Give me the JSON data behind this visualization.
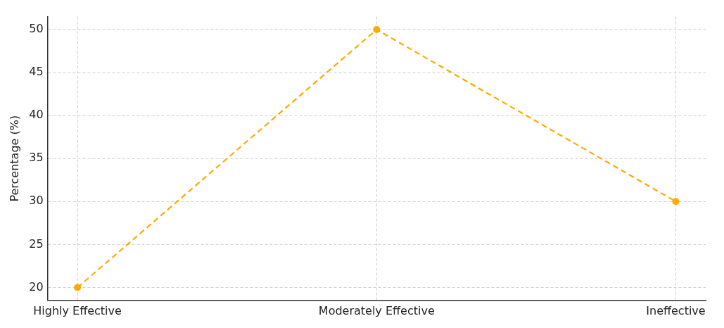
{
  "chart_data": {
    "type": "line",
    "ylabel": "Percentage (%)",
    "categories": [
      "Highly Effective",
      "Moderately Effective",
      "Ineffective"
    ],
    "series": [
      {
        "color": "#ffaa00",
        "values": [
          20,
          50,
          30
        ]
      }
    ],
    "ylim": [
      18.5,
      51.5
    ],
    "yticks": [
      20,
      25,
      30,
      35,
      40,
      45,
      50
    ],
    "grid": true,
    "legend": false,
    "marker": "circle",
    "line_style": "dashed"
  }
}
